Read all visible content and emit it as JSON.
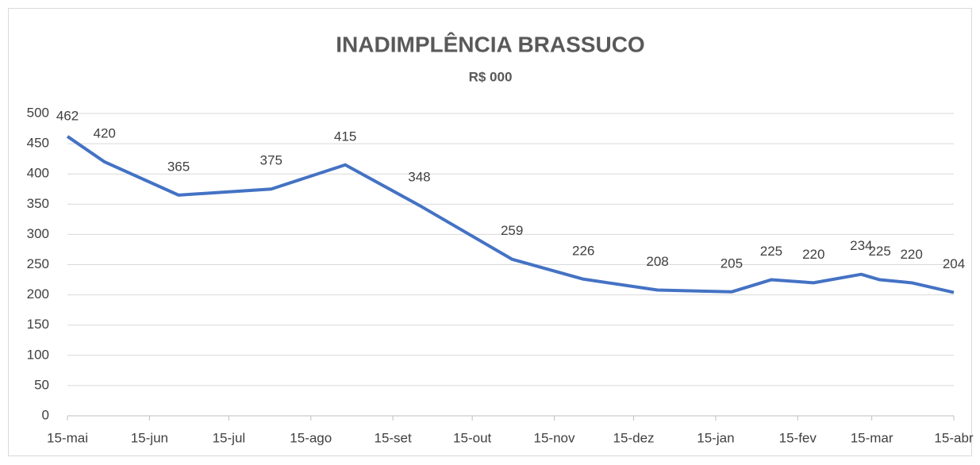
{
  "chart_data": {
    "type": "line",
    "title": "INADIMPLÊNCIA BRASSUCO",
    "subtitle": "R$ 000",
    "x": [
      0,
      14,
      42,
      77,
      105,
      133,
      168,
      195,
      223,
      251,
      266,
      282,
      300,
      307,
      319,
      335
    ],
    "series": [
      {
        "name": "Inadimplência",
        "color": "#4472c4",
        "values": [
          462,
          420,
          365,
          375,
          415,
          348,
          259,
          226,
          208,
          205,
          225,
          220,
          234,
          225,
          220,
          204
        ]
      }
    ],
    "xlim": [
      0,
      335
    ],
    "xticks": [
      {
        "value": 0,
        "label": "15-mai"
      },
      {
        "value": 31,
        "label": "15-jun"
      },
      {
        "value": 61,
        "label": "15-jul"
      },
      {
        "value": 92,
        "label": "15-ago"
      },
      {
        "value": 123,
        "label": "15-set"
      },
      {
        "value": 153,
        "label": "15-out"
      },
      {
        "value": 184,
        "label": "15-nov"
      },
      {
        "value": 214,
        "label": "15-dez"
      },
      {
        "value": 245,
        "label": "15-jan"
      },
      {
        "value": 276,
        "label": "15-fev"
      },
      {
        "value": 304,
        "label": "15-mar"
      },
      {
        "value": 335,
        "label": "15-abr"
      }
    ],
    "ylim": [
      0,
      500
    ],
    "yticks": [
      0,
      50,
      100,
      150,
      200,
      250,
      300,
      350,
      400,
      450,
      500
    ],
    "grid": true
  }
}
